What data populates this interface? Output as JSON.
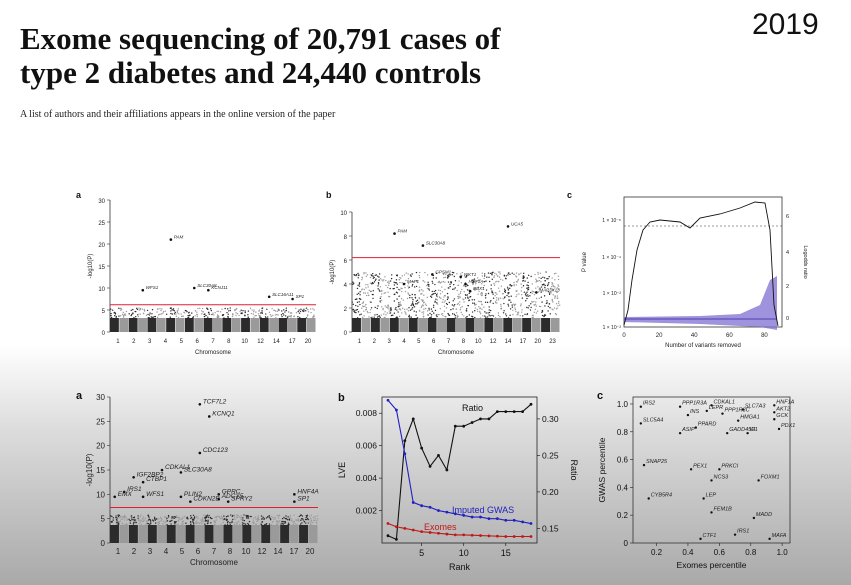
{
  "header": {
    "title_line1": "Exome sequencing of 20,791 cases of",
    "title_line2": "type 2 diabetes and 24,440 controls",
    "year": "2019",
    "byline": "A list of authors and their affiliations appears in the online version of the paper"
  },
  "panel_letters": {
    "top_a": "a",
    "top_b": "b",
    "top_c": "c",
    "bot_a": "a",
    "bot_b": "b",
    "bot_c": "c"
  },
  "chart_data": [
    {
      "id": "top_a",
      "type": "scatter",
      "subtype": "manhattan",
      "ylabel": "-log10(P)",
      "xlabel": "Chromosome",
      "ylim": [
        0,
        30
      ],
      "yticks": [
        0,
        5,
        10,
        15,
        20,
        25,
        30
      ],
      "xticks": [
        "1",
        "2",
        "3",
        "4",
        "5",
        "6",
        "7",
        "8",
        "10",
        "12",
        "14",
        "17",
        "20"
      ],
      "threshold": 6.2,
      "hits": [
        {
          "label": "PAM",
          "chrom": 7,
          "y": 21
        },
        {
          "label": "WFS1",
          "chrom": 4,
          "y": 9.5
        },
        {
          "label": "SLC30A8",
          "chrom": 9.5,
          "y": 10
        },
        {
          "label": "KCNJ11",
          "chrom": 11,
          "y": 9.5
        },
        {
          "label": "SLC16A11",
          "chrom": 17.5,
          "y": 8
        },
        {
          "label": "SP1",
          "chrom": 20,
          "y": 7.5
        }
      ]
    },
    {
      "id": "top_b",
      "type": "scatter",
      "subtype": "manhattan",
      "ylabel": "-log10(P)",
      "xlabel": "Chromosome",
      "ylim": [
        0,
        10
      ],
      "yticks": [
        0,
        2,
        4,
        6,
        8,
        10
      ],
      "xticks": [
        "1",
        "2",
        "3",
        "4",
        "5",
        "6",
        "7",
        "8",
        "10",
        "12",
        "14",
        "17",
        "20",
        "23"
      ],
      "threshold": 6.2,
      "hits": [
        {
          "label": "PAM",
          "chrom": 5,
          "y": 8.2
        },
        {
          "label": "SLC30A8",
          "chrom": 8,
          "y": 7.2
        },
        {
          "label": "UCA5",
          "chrom": 17,
          "y": 8.8
        },
        {
          "label": "GPSM1",
          "chrom": 9,
          "y": 4.8
        },
        {
          "label": "WKT1",
          "chrom": 12,
          "y": 4.6
        },
        {
          "label": "HNF1A",
          "chrom": 12.5,
          "y": 4.0
        },
        {
          "label": "PBX1",
          "chrom": 13,
          "y": 3.4
        },
        {
          "label": "MAF1",
          "chrom": 6,
          "y": 4.0
        },
        {
          "label": "MAP3K13",
          "chrom": 20,
          "y": 3.3
        }
      ]
    },
    {
      "id": "top_c",
      "type": "line",
      "xlabel": "Number of variants removed",
      "ylabel": "P value",
      "ylabel2": "Logodds ratio",
      "xlim": [
        0,
        90
      ],
      "xticks": [
        0,
        20,
        40,
        60,
        80
      ],
      "yticks_left": [
        "1 × 10⁻⁶",
        "1 × 10⁻⁴",
        "1 × 10⁻²",
        "1 × 10⁻²"
      ],
      "yticks_right": [
        0,
        2,
        4,
        6
      ]
    },
    {
      "id": "bot_a",
      "type": "scatter",
      "subtype": "manhattan",
      "ylabel": "-log10(P)",
      "xlabel": "Chromosome",
      "ylim": [
        0,
        30
      ],
      "yticks": [
        0,
        5,
        10,
        15,
        20,
        25,
        30
      ],
      "xticks": [
        "1",
        "2",
        "3",
        "4",
        "5",
        "6",
        "7",
        "8",
        "10",
        "12",
        "14",
        "17",
        "20"
      ],
      "threshold": 7.3,
      "hits": [
        {
          "label": "TCF7L2",
          "chrom": 10,
          "y": 28.5
        },
        {
          "label": "KCNQ1",
          "chrom": 11,
          "y": 26
        },
        {
          "label": "CDC123",
          "chrom": 10,
          "y": 18.5
        },
        {
          "label": "SLC30A8",
          "chrom": 8,
          "y": 14.5
        },
        {
          "label": "CDKAL1",
          "chrom": 6,
          "y": 15
        },
        {
          "label": "IGF2BP2",
          "chrom": 3,
          "y": 13.5
        },
        {
          "label": "CTBP1",
          "chrom": 4,
          "y": 12.5
        },
        {
          "label": "IRS1",
          "chrom": 2,
          "y": 10.5
        },
        {
          "label": "EMX",
          "chrom": 1,
          "y": 9.5
        },
        {
          "label": "WFS1",
          "chrom": 4,
          "y": 9.5
        },
        {
          "label": "PLIN2",
          "chrom": 8,
          "y": 9.5
        },
        {
          "label": "CDKN2B",
          "chrom": 9,
          "y": 8.5
        },
        {
          "label": "HNF4A",
          "chrom": 20,
          "y": 10
        },
        {
          "label": "SP1",
          "chrom": 20,
          "y": 8.5
        },
        {
          "label": "GPRC",
          "chrom": 12,
          "y": 10
        },
        {
          "label": "ADCY5",
          "chrom": 12,
          "y": 9
        },
        {
          "label": "SPRY2",
          "chrom": 13,
          "y": 8.5
        }
      ]
    },
    {
      "id": "bot_b",
      "type": "line",
      "xlabel": "Rank",
      "ylabel": "LVE",
      "ylabel2": "Ratio",
      "xlim": [
        0,
        18
      ],
      "xticks": [
        5,
        10,
        15
      ],
      "ylim": [
        0,
        0.009
      ],
      "yticks": [
        0.002,
        0.004,
        0.006,
        0.008
      ],
      "y2lim": [
        0.13,
        0.33
      ],
      "y2ticks": [
        0.15,
        0.2,
        0.25,
        0.3
      ],
      "series": [
        {
          "name": "Ratio",
          "axis": "right",
          "color": "#111111",
          "x": [
            1,
            2,
            3,
            4,
            5,
            6,
            7,
            8,
            9,
            10,
            11,
            12,
            13,
            14,
            15,
            16,
            17,
            18
          ],
          "y": [
            0.14,
            0.135,
            0.27,
            0.3,
            0.26,
            0.235,
            0.25,
            0.23,
            0.29,
            0.29,
            0.295,
            0.3,
            0.3,
            0.31,
            0.31,
            0.31,
            0.31,
            0.32
          ]
        },
        {
          "name": "Imputed GWAS",
          "axis": "left",
          "color": "#2020c0",
          "x": [
            1,
            2,
            3,
            4,
            5,
            6,
            7,
            8,
            9,
            10,
            11,
            12,
            13,
            14,
            15,
            16,
            17,
            18
          ],
          "y": [
            0.0088,
            0.0082,
            0.0055,
            0.0025,
            0.0023,
            0.0022,
            0.002,
            0.0019,
            0.0018,
            0.0017,
            0.0016,
            0.0016,
            0.0015,
            0.0015,
            0.0014,
            0.0014,
            0.0013,
            0.0012
          ]
        },
        {
          "name": "Exomes",
          "axis": "left",
          "color": "#c01818",
          "x": [
            1,
            2,
            3,
            4,
            5,
            6,
            7,
            8,
            9,
            10,
            11,
            12,
            13,
            14,
            15,
            16,
            17,
            18
          ],
          "y": [
            0.0012,
            0.001,
            0.0009,
            0.0008,
            0.0007,
            0.00065,
            0.0006,
            0.00055,
            0.0005,
            0.0005,
            0.00048,
            0.00046,
            0.00044,
            0.00042,
            0.0004,
            0.0004,
            0.0004,
            0.0004
          ]
        }
      ]
    },
    {
      "id": "bot_c",
      "type": "scatter",
      "xlabel": "Exomes percentile",
      "ylabel": "GWAS percentile",
      "xlim": [
        0.05,
        1.05
      ],
      "ylim": [
        0,
        1.05
      ],
      "xticks": [
        0.2,
        0.4,
        0.6,
        0.8,
        1.0
      ],
      "yticks": [
        0,
        0.2,
        0.4,
        0.6,
        0.8,
        1.0
      ],
      "points": [
        {
          "label": "IRS2",
          "x": 0.1,
          "y": 0.98
        },
        {
          "label": "PPP1R3A",
          "x": 0.35,
          "y": 0.98
        },
        {
          "label": "CDKAL1",
          "x": 0.55,
          "y": 0.99
        },
        {
          "label": "SLC7A3",
          "x": 0.75,
          "y": 0.96
        },
        {
          "label": "HNF1A",
          "x": 0.95,
          "y": 0.99
        },
        {
          "label": "AKT2",
          "x": 0.95,
          "y": 0.94
        },
        {
          "label": "LEPR",
          "x": 0.52,
          "y": 0.95
        },
        {
          "label": "INS",
          "x": 0.4,
          "y": 0.92
        },
        {
          "label": "PPP1R3C",
          "x": 0.62,
          "y": 0.93
        },
        {
          "label": "SLC5A4",
          "x": 0.1,
          "y": 0.86
        },
        {
          "label": "HMGA1",
          "x": 0.72,
          "y": 0.88
        },
        {
          "label": "GCK",
          "x": 0.95,
          "y": 0.89
        },
        {
          "label": "PPARD",
          "x": 0.45,
          "y": 0.83
        },
        {
          "label": "ASIP",
          "x": 0.35,
          "y": 0.79
        },
        {
          "label": "GADD45G",
          "x": 0.65,
          "y": 0.79
        },
        {
          "label": "IP1",
          "x": 0.78,
          "y": 0.79
        },
        {
          "label": "PDX1",
          "x": 0.98,
          "y": 0.82
        },
        {
          "label": "SNAP25",
          "x": 0.12,
          "y": 0.56
        },
        {
          "label": "PEX1",
          "x": 0.42,
          "y": 0.53
        },
        {
          "label": "PRKCI",
          "x": 0.6,
          "y": 0.53
        },
        {
          "label": "NCS3",
          "x": 0.55,
          "y": 0.45
        },
        {
          "label": "FOXM1",
          "x": 0.85,
          "y": 0.45
        },
        {
          "label": "CYB5R4",
          "x": 0.15,
          "y": 0.32
        },
        {
          "label": "LEP",
          "x": 0.5,
          "y": 0.32
        },
        {
          "label": "FEM1B",
          "x": 0.55,
          "y": 0.22
        },
        {
          "label": "MADD",
          "x": 0.82,
          "y": 0.18
        },
        {
          "label": "CTF1",
          "x": 0.48,
          "y": 0.03
        },
        {
          "label": "IRS1",
          "x": 0.7,
          "y": 0.06
        },
        {
          "label": "MAFA",
          "x": 0.92,
          "y": 0.03
        }
      ]
    }
  ]
}
